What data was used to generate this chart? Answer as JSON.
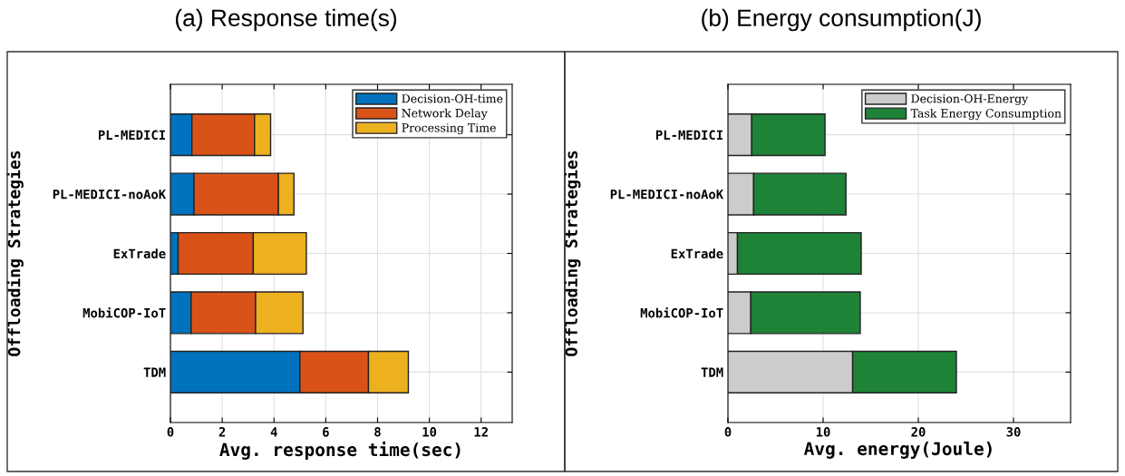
{
  "chart_data": [
    {
      "type": "bar",
      "title": "(a) Response time(s)",
      "orientation": "horizontal",
      "stacked": true,
      "xlabel": "Avg. response time(sec)",
      "ylabel": "Offloading Strategies",
      "categories": [
        "PL-MEDICI",
        "PL-MEDICI-noAoK",
        "ExTrade",
        "MobiCOP-IoT",
        "TDM"
      ],
      "series": [
        {
          "name": "Decision-OH-time",
          "color": "#0072bd",
          "values": [
            0.83,
            0.91,
            0.3,
            0.8,
            5.0
          ]
        },
        {
          "name": "Network Delay",
          "color": "#d95319",
          "values": [
            2.42,
            3.26,
            2.9,
            2.49,
            2.65
          ]
        },
        {
          "name": "Processing Time",
          "color": "#edb120",
          "values": [
            0.62,
            0.6,
            2.05,
            1.83,
            1.54
          ]
        }
      ],
      "xlim": [
        0,
        13.2
      ],
      "xticks": [
        0,
        2,
        4,
        6,
        8,
        10,
        12
      ],
      "grid": true,
      "legend": "top right"
    },
    {
      "type": "bar",
      "title": "(b) Energy consumption(J)",
      "orientation": "horizontal",
      "stacked": true,
      "xlabel": "Avg. energy(Joule)",
      "ylabel": "Offloading Strategies",
      "categories": [
        "PL-MEDICI",
        "PL-MEDICI-noAoK",
        "ExTrade",
        "MobiCOP-IoT",
        "TDM"
      ],
      "series": [
        {
          "name": "Decision-OH-Energy",
          "color": "#cccccc",
          "values": [
            2.5,
            2.7,
            1.0,
            2.4,
            13.1
          ]
        },
        {
          "name": "Task Energy Consumption",
          "color": "#1e8237",
          "values": [
            7.7,
            9.7,
            13.0,
            11.5,
            10.9
          ]
        }
      ],
      "xlim": [
        0,
        36
      ],
      "xticks": [
        0,
        10,
        20,
        30
      ],
      "grid": true,
      "legend": "top right"
    }
  ]
}
